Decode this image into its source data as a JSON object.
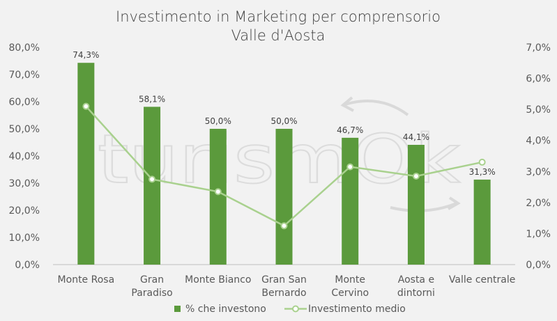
{
  "watermark": "turismOk",
  "chart_data": {
    "type": "bar+line",
    "title_lines": [
      "Investimento in Marketing per comprensorio",
      "Valle d'Aosta"
    ],
    "categories": [
      [
        "Monte Rosa"
      ],
      [
        "Gran",
        "Paradiso"
      ],
      [
        "Monte Bianco"
      ],
      [
        "Gran San",
        "Bernardo"
      ],
      [
        "Monte",
        "Cervino"
      ],
      [
        "Aosta e",
        "dintorni"
      ],
      [
        "Valle centrale"
      ]
    ],
    "series": [
      {
        "name": "% che investono",
        "type": "bar",
        "axis": "left",
        "color": "#5b9a3c",
        "values": [
          74.3,
          58.1,
          50.0,
          50.0,
          46.7,
          44.1,
          31.3
        ],
        "labels": [
          "74,3%",
          "58,1%",
          "50,0%",
          "50,0%",
          "46,7%",
          "44,1%",
          "31,3%"
        ]
      },
      {
        "name": "Investimento medio",
        "type": "line",
        "axis": "right",
        "color": "#a9d18e",
        "values": [
          5.1,
          2.75,
          2.35,
          1.25,
          3.15,
          2.85,
          3.3
        ]
      }
    ],
    "y_left": {
      "min": 0,
      "max": 80,
      "ticks": [
        "0,0%",
        "10,0%",
        "20,0%",
        "30,0%",
        "40,0%",
        "50,0%",
        "60,0%",
        "70,0%",
        "80,0%"
      ]
    },
    "y_right": {
      "min": 0,
      "max": 7,
      "ticks": [
        "0,0%",
        "1,0%",
        "2,0%",
        "3,0%",
        "4,0%",
        "5,0%",
        "6,0%",
        "7,0%"
      ]
    },
    "legend_position": "bottom",
    "grid": false
  }
}
